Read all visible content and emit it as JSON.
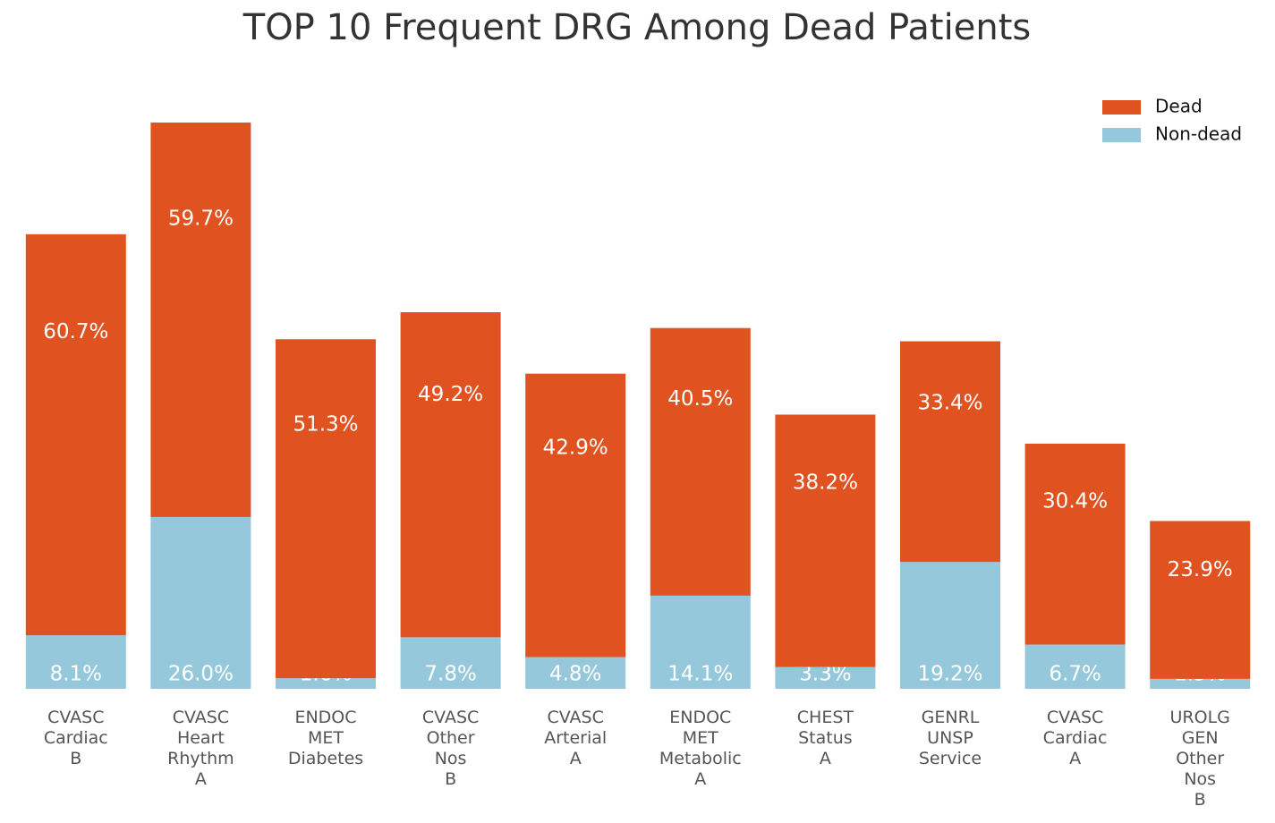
{
  "chart_data": {
    "type": "stacked-bar",
    "title": "TOP 10 Frequent DRG Among Dead Patients",
    "categories": [
      "CVASC\nCardiac\nB",
      "CVASC\nHeart\nRhythm\nA",
      "ENDOC\nMET\nDiabetes",
      "CVASC\nOther\nNos\nB",
      "CVASC\nArterial\nA",
      "ENDOC\nMET\nMetabolic\nA",
      "CHEST\nStatus\nA",
      "GENRL\nUNSP\nService",
      "CVASC\nCardiac\nA",
      "UROLG\nGEN\nOther\nNos\nB"
    ],
    "series": [
      {
        "name": "Non-dead",
        "color": "#96c8dc",
        "values": [
          8.1,
          26.0,
          1.6,
          7.8,
          4.8,
          14.1,
          3.3,
          19.2,
          6.7,
          1.5
        ],
        "value_labels": [
          "8.1%",
          "26.0%",
          "1.6%",
          "7.8%",
          "4.8%",
          "14.1%",
          "3.3%",
          "19.2%",
          "6.7%",
          "1.5%"
        ]
      },
      {
        "name": "Dead",
        "color": "#e05320",
        "values": [
          60.7,
          59.7,
          51.3,
          49.2,
          42.9,
          40.5,
          38.2,
          33.4,
          30.4,
          23.9
        ],
        "value_labels": [
          "60.7%",
          "59.7%",
          "51.3%",
          "49.2%",
          "42.9%",
          "40.5%",
          "38.2%",
          "33.4%",
          "30.4%",
          "23.9%"
        ]
      }
    ],
    "legend": "upper right"
  }
}
